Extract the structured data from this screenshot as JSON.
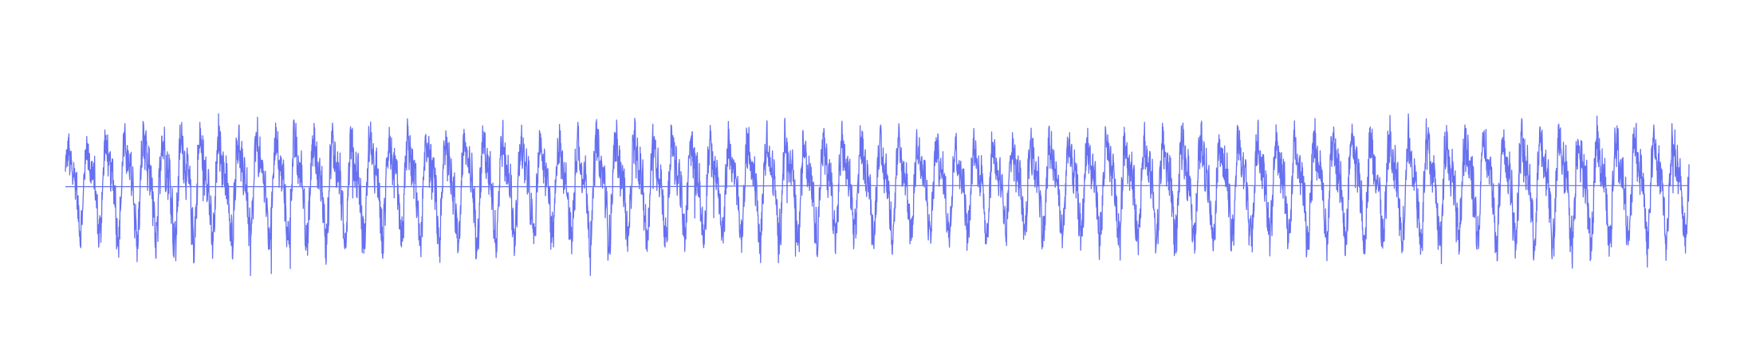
{
  "chart_data": {
    "type": "line",
    "title": "",
    "xlabel": "",
    "ylabel": "",
    "axes_visible": false,
    "grid": false,
    "legend": "none",
    "ylim": [
      -1.0,
      1.0
    ],
    "series": [
      {
        "color": "#6670f0",
        "x_range": [
          0,
          1
        ],
        "cycles": 86,
        "amplitude_envelope": [
          0.55,
          0.75,
          0.7,
          0.68,
          0.72,
          0.66,
          0.7,
          0.65,
          0.68,
          0.62,
          0.6,
          0.64,
          0.66,
          0.68,
          0.7,
          0.7,
          0.72,
          0.72,
          0.7
        ],
        "min": -0.88,
        "max": 0.78
      },
      {
        "color": "#6670f0",
        "x_range": [
          0,
          1
        ],
        "values": [
          -0.02,
          -0.02,
          -0.02,
          -0.02,
          -0.02,
          -0.01,
          -0.01,
          -0.01,
          -0.01,
          -0.01,
          -0.01,
          -0.01
        ]
      }
    ]
  }
}
